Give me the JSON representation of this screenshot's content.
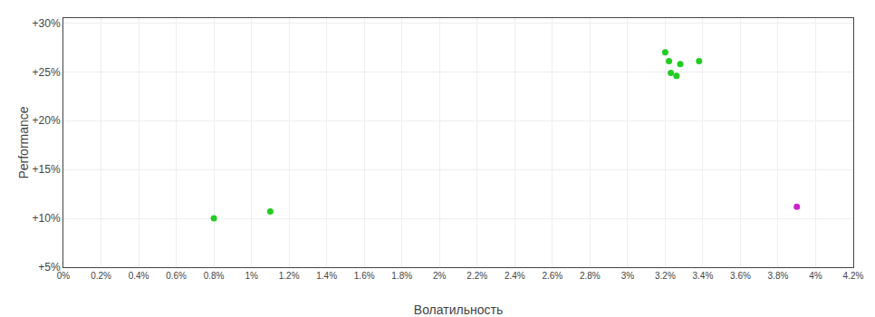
{
  "chart_data": {
    "type": "scatter",
    "xlabel": "Волатильность",
    "ylabel": "Performance",
    "xlim": [
      0.0,
      0.042
    ],
    "ylim": [
      0.05,
      0.305
    ],
    "xticks": [
      {
        "value": 0.0,
        "label": "0%"
      },
      {
        "value": 0.002,
        "label": "0.2%"
      },
      {
        "value": 0.004,
        "label": "0.4%"
      },
      {
        "value": 0.006,
        "label": "0.6%"
      },
      {
        "value": 0.008,
        "label": "0.8%"
      },
      {
        "value": 0.01,
        "label": "1%"
      },
      {
        "value": 0.012,
        "label": "1.2%"
      },
      {
        "value": 0.014,
        "label": "1.4%"
      },
      {
        "value": 0.016,
        "label": "1.6%"
      },
      {
        "value": 0.018,
        "label": "1.8%"
      },
      {
        "value": 0.02,
        "label": "2%"
      },
      {
        "value": 0.022,
        "label": "2.2%"
      },
      {
        "value": 0.024,
        "label": "2.4%"
      },
      {
        "value": 0.026,
        "label": "2.6%"
      },
      {
        "value": 0.028,
        "label": "2.8%"
      },
      {
        "value": 0.03,
        "label": "3%"
      },
      {
        "value": 0.032,
        "label": "3.2%"
      },
      {
        "value": 0.034,
        "label": "3.4%"
      },
      {
        "value": 0.036,
        "label": "3.6%"
      },
      {
        "value": 0.038,
        "label": "3.8%"
      },
      {
        "value": 0.04,
        "label": "4%"
      },
      {
        "value": 0.042,
        "label": "4.2%"
      }
    ],
    "yticks": [
      {
        "value": 0.05,
        "label": "+5%"
      },
      {
        "value": 0.1,
        "label": "+10%"
      },
      {
        "value": 0.15,
        "label": "+15%"
      },
      {
        "value": 0.2,
        "label": "+20%"
      },
      {
        "value": 0.25,
        "label": "+25%"
      },
      {
        "value": 0.3,
        "label": "+30%"
      }
    ],
    "grid": true,
    "series": [
      {
        "color": "#22cc22",
        "x": [
          0.008,
          0.011,
          0.032,
          0.0322,
          0.0328,
          0.0323,
          0.0326,
          0.0338
        ],
        "values": [
          0.1,
          0.107,
          0.27,
          0.261,
          0.258,
          0.249,
          0.246,
          0.261
        ]
      },
      {
        "color": "#cc22cc",
        "x": [
          0.039
        ],
        "values": [
          0.112
        ]
      }
    ]
  }
}
